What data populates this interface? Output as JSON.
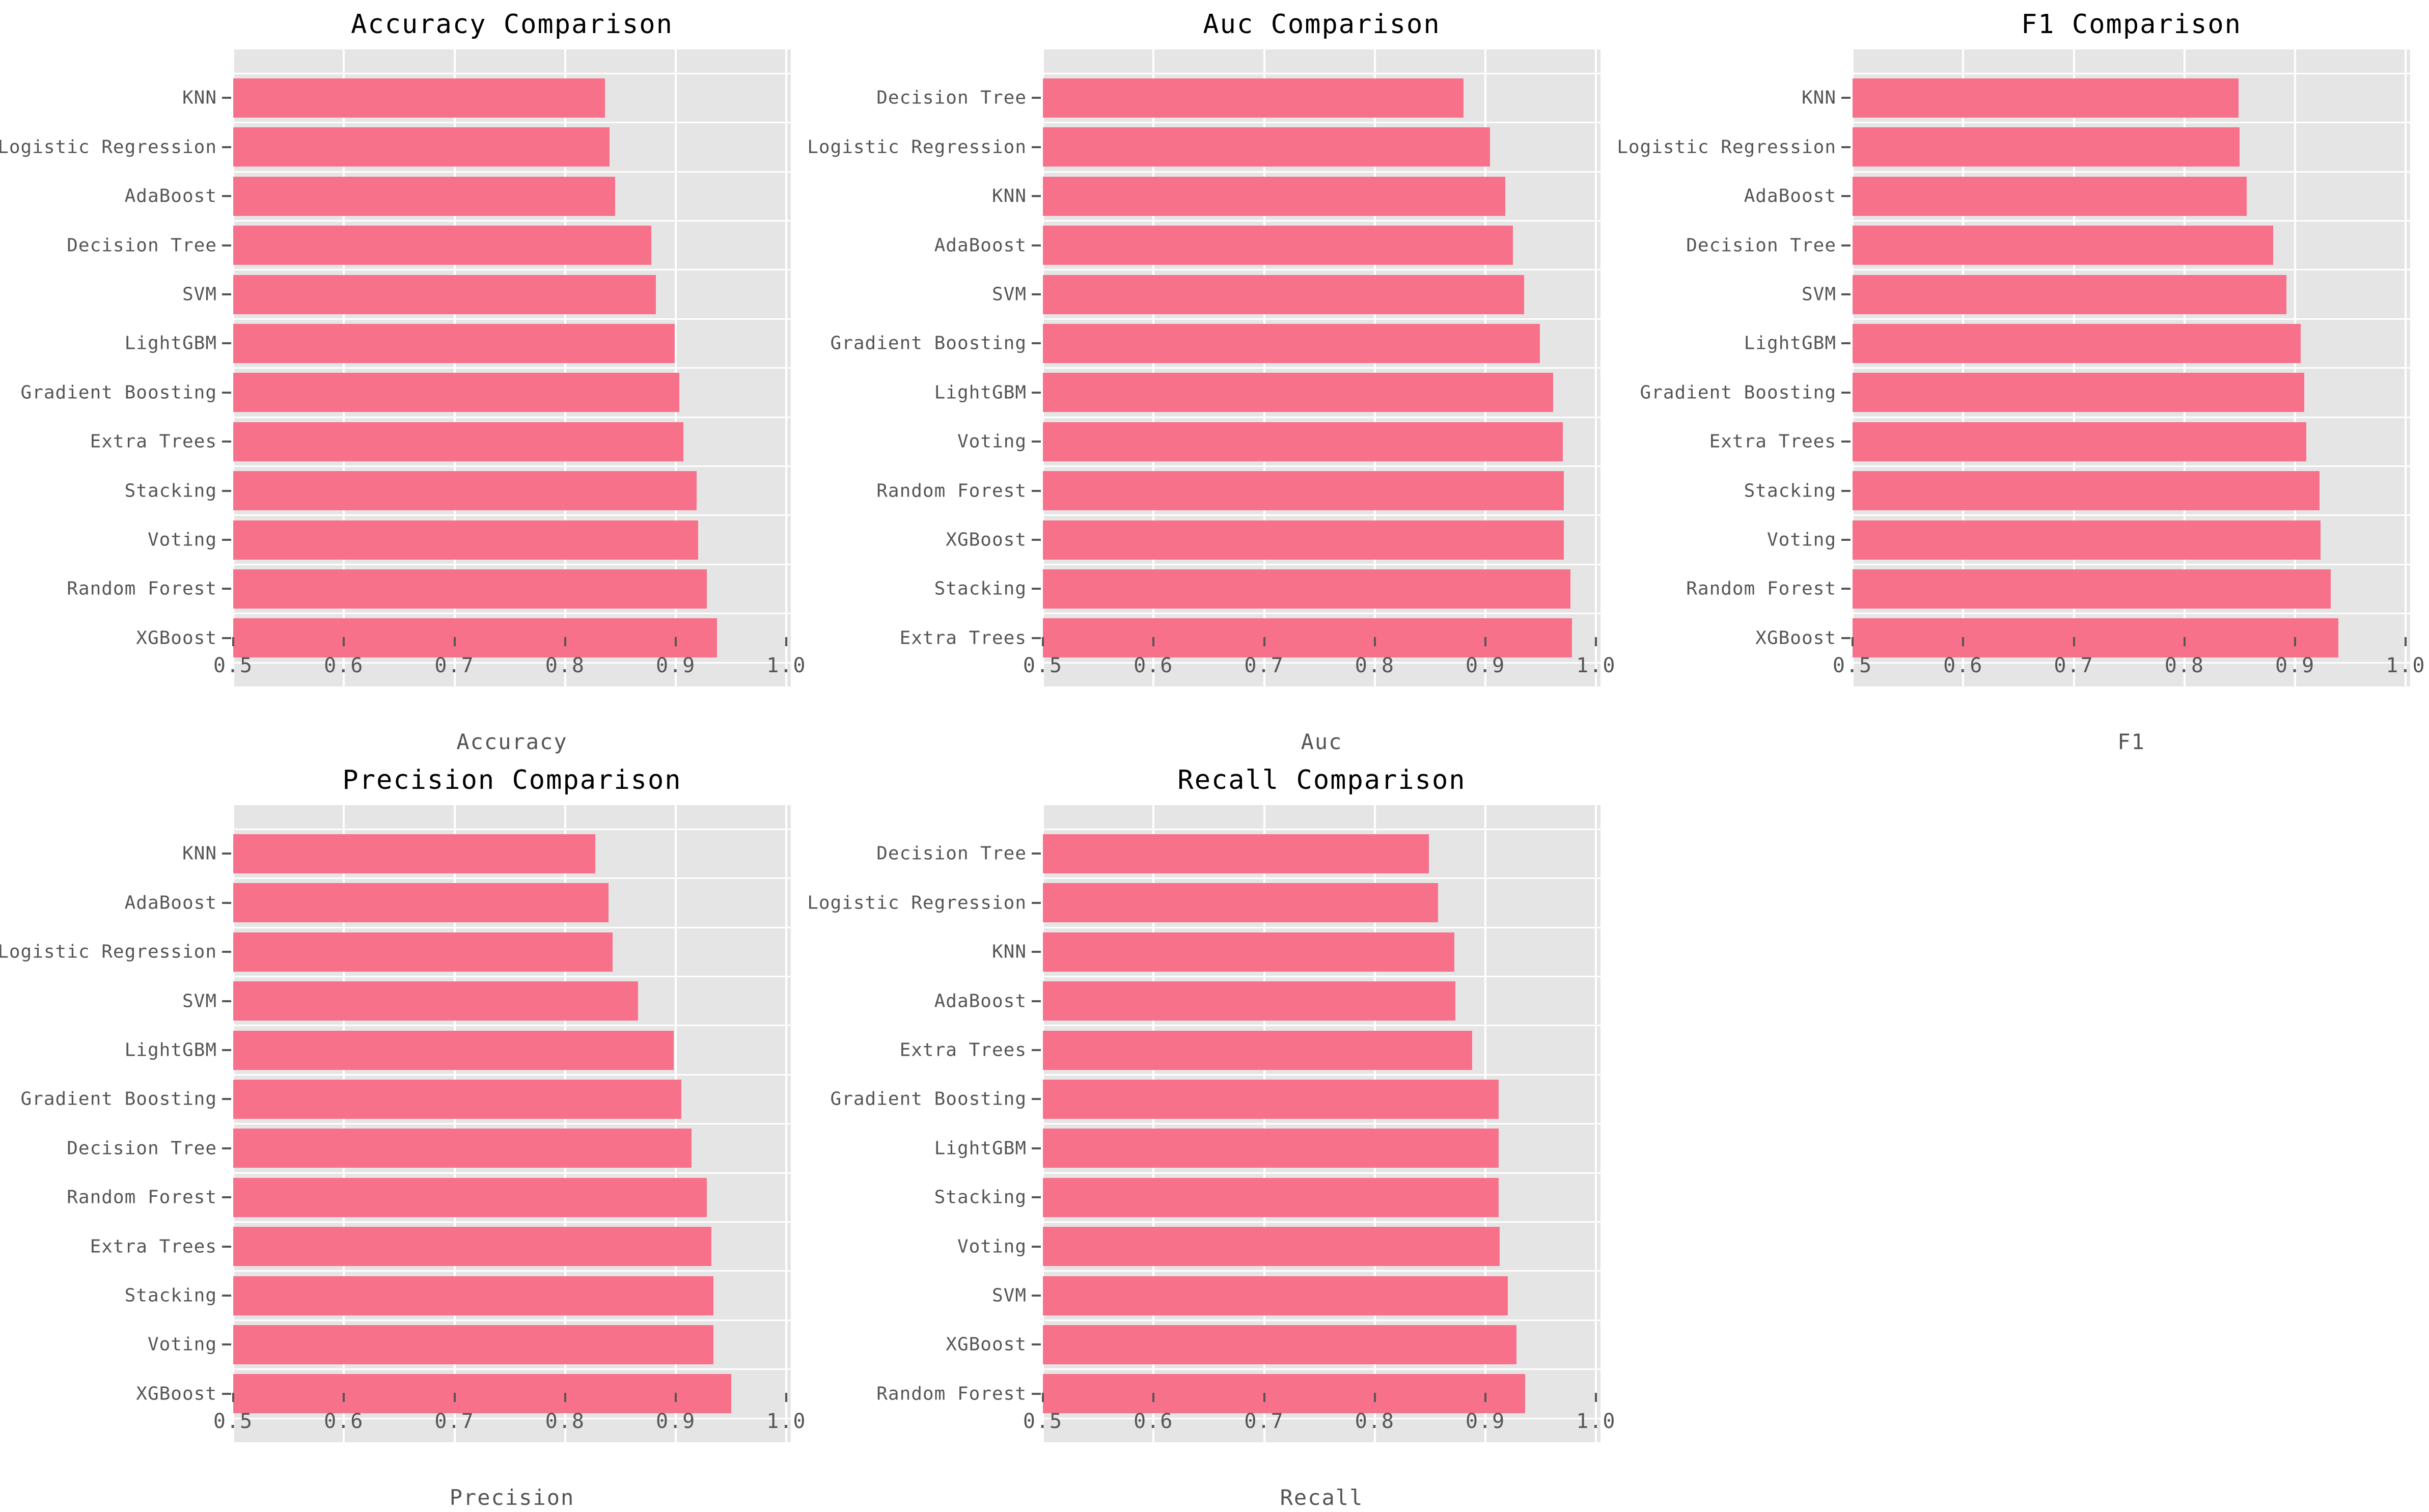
{
  "style": {
    "bar_color": "#f7718a",
    "panel_bg": "#e5e5e5",
    "grid_color": "#ffffff",
    "tick_text_color": "#555555",
    "title_color": "#000000",
    "figure_bg": "#ffffff"
  },
  "axis": {
    "min": 0.5,
    "max": 1.0,
    "ticks": [
      0.5,
      0.6,
      0.7,
      0.8,
      0.9,
      1.0
    ],
    "tick_labels": [
      "0.5",
      "0.6",
      "0.7",
      "0.8",
      "0.9",
      "1.0"
    ]
  },
  "chart_data": [
    {
      "type": "bar",
      "orientation": "horizontal",
      "title": "Accuracy Comparison",
      "xlabel": "Accuracy",
      "xlim": [
        0.5,
        1.0
      ],
      "grid": true,
      "categories": [
        "KNN",
        "Logistic Regression",
        "AdaBoost",
        "Decision Tree",
        "SVM",
        "LightGBM",
        "Gradient Boosting",
        "Extra Trees",
        "Stacking",
        "Voting",
        "Random Forest",
        "XGBoost"
      ],
      "values": [
        0.836,
        0.84,
        0.845,
        0.878,
        0.882,
        0.899,
        0.903,
        0.907,
        0.919,
        0.92,
        0.928,
        0.937
      ]
    },
    {
      "type": "bar",
      "orientation": "horizontal",
      "title": "Auc Comparison",
      "xlabel": "Auc",
      "xlim": [
        0.5,
        1.0
      ],
      "grid": true,
      "categories": [
        "Decision Tree",
        "Logistic Regression",
        "KNN",
        "AdaBoost",
        "SVM",
        "Gradient Boosting",
        "LightGBM",
        "Voting",
        "Random Forest",
        "XGBoost",
        "Stacking",
        "Extra Trees"
      ],
      "values": [
        0.88,
        0.904,
        0.918,
        0.925,
        0.935,
        0.949,
        0.961,
        0.97,
        0.971,
        0.971,
        0.977,
        0.978
      ]
    },
    {
      "type": "bar",
      "orientation": "horizontal",
      "title": "F1 Comparison",
      "xlabel": "F1",
      "xlim": [
        0.5,
        1.0
      ],
      "grid": true,
      "categories": [
        "KNN",
        "Logistic Regression",
        "AdaBoost",
        "Decision Tree",
        "SVM",
        "LightGBM",
        "Gradient Boosting",
        "Extra Trees",
        "Stacking",
        "Voting",
        "Random Forest",
        "XGBoost"
      ],
      "values": [
        0.849,
        0.85,
        0.856,
        0.88,
        0.892,
        0.905,
        0.908,
        0.91,
        0.922,
        0.923,
        0.932,
        0.939
      ]
    },
    {
      "type": "bar",
      "orientation": "horizontal",
      "title": "Precision Comparison",
      "xlabel": "Precision",
      "xlim": [
        0.5,
        1.0
      ],
      "grid": true,
      "categories": [
        "KNN",
        "AdaBoost",
        "Logistic Regression",
        "SVM",
        "LightGBM",
        "Gradient Boosting",
        "Decision Tree",
        "Random Forest",
        "Extra Trees",
        "Stacking",
        "Voting",
        "XGBoost"
      ],
      "values": [
        0.827,
        0.839,
        0.843,
        0.866,
        0.898,
        0.905,
        0.914,
        0.928,
        0.932,
        0.934,
        0.934,
        0.95
      ]
    },
    {
      "type": "bar",
      "orientation": "horizontal",
      "title": "Recall Comparison",
      "xlabel": "Recall",
      "xlim": [
        0.5,
        1.0
      ],
      "grid": true,
      "categories": [
        "Decision Tree",
        "Logistic Regression",
        "KNN",
        "AdaBoost",
        "Extra Trees",
        "Gradient Boosting",
        "LightGBM",
        "Stacking",
        "Voting",
        "SVM",
        "XGBoost",
        "Random Forest"
      ],
      "values": [
        0.849,
        0.857,
        0.872,
        0.873,
        0.888,
        0.912,
        0.912,
        0.912,
        0.913,
        0.92,
        0.928,
        0.936
      ]
    }
  ]
}
